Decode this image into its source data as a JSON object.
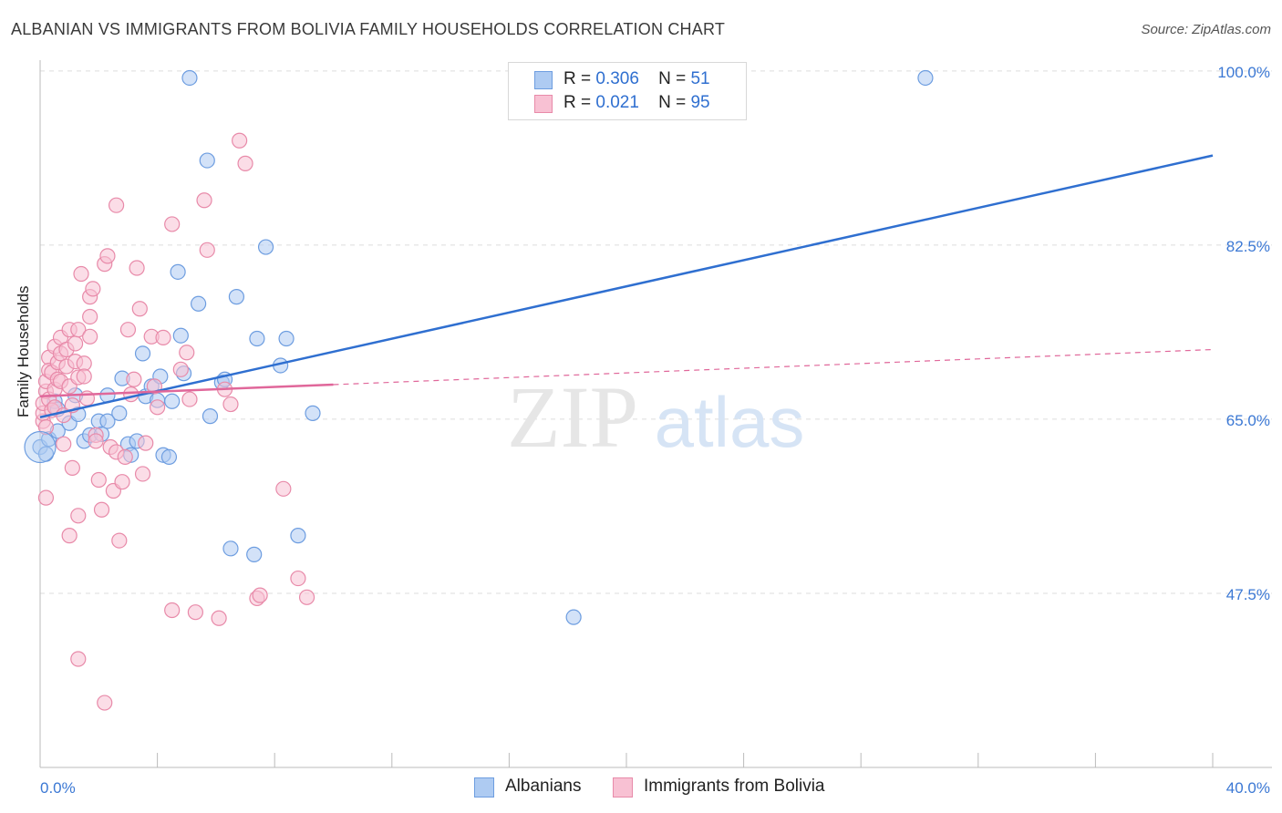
{
  "title": "ALBANIAN VS IMMIGRANTS FROM BOLIVIA FAMILY HOUSEHOLDS CORRELATION CHART",
  "source": "Source: ZipAtlas.com",
  "watermark": {
    "zip": "ZIP",
    "atlas": "atlas"
  },
  "legend_top": {
    "r_label": "R =",
    "n_label": "N =",
    "rows": [
      {
        "r": "0.306",
        "n": "51",
        "fill": "#aecbf2",
        "stroke": "#6d9de0"
      },
      {
        "r": "0.021",
        "n": "95",
        "fill": "#f8c1d3",
        "stroke": "#e88aa9"
      }
    ]
  },
  "chart_data": {
    "type": "scatter",
    "title": "ALBANIAN VS IMMIGRANTS FROM BOLIVIA FAMILY HOUSEHOLDS CORRELATION CHART",
    "xlabel": "",
    "ylabel": "Family Households",
    "xlim": [
      0,
      40
    ],
    "ylim": [
      30,
      102
    ],
    "x_tick_labels": [
      "0.0%",
      "40.0%"
    ],
    "y_ticks": [
      47.5,
      65.0,
      82.5,
      100.0
    ],
    "y_tick_labels": [
      "47.5%",
      "65.0%",
      "82.5%",
      "100.0%"
    ],
    "grid": true,
    "legend_position": "bottom",
    "series": [
      {
        "name": "Albanians",
        "color": "#2f6fd0",
        "fill": "#aecbf2",
        "stroke": "#6d9de0",
        "r": 0.306,
        "n": 51,
        "trend": {
          "x0": 0.0,
          "y0": 65.2,
          "x1": 40.0,
          "y1": 91.5,
          "dashed_from": null
        },
        "points": [
          [
            0.0,
            62.2
          ],
          [
            0.2,
            61.5
          ],
          [
            0.3,
            63.0
          ],
          [
            0.5,
            66.8
          ],
          [
            0.6,
            66.0
          ],
          [
            0.6,
            63.8
          ],
          [
            1.0,
            64.6
          ],
          [
            1.2,
            67.4
          ],
          [
            1.3,
            65.5
          ],
          [
            1.5,
            62.8
          ],
          [
            1.7,
            63.4
          ],
          [
            2.0,
            64.8
          ],
          [
            2.1,
            63.5
          ],
          [
            2.3,
            67.4
          ],
          [
            2.3,
            64.8
          ],
          [
            2.7,
            65.6
          ],
          [
            2.8,
            69.1
          ],
          [
            3.0,
            62.5
          ],
          [
            3.1,
            61.4
          ],
          [
            3.3,
            62.8
          ],
          [
            3.5,
            71.6
          ],
          [
            3.6,
            67.3
          ],
          [
            3.8,
            68.3
          ],
          [
            4.0,
            66.9
          ],
          [
            4.1,
            69.3
          ],
          [
            4.2,
            61.4
          ],
          [
            4.4,
            61.2
          ],
          [
            4.5,
            66.8
          ],
          [
            4.7,
            79.8
          ],
          [
            4.8,
            73.4
          ],
          [
            4.9,
            69.6
          ],
          [
            5.1,
            99.3
          ],
          [
            5.4,
            76.6
          ],
          [
            5.7,
            91.0
          ],
          [
            5.8,
            65.3
          ],
          [
            6.2,
            68.7
          ],
          [
            6.3,
            69.0
          ],
          [
            6.5,
            52.0
          ],
          [
            6.7,
            77.3
          ],
          [
            7.3,
            51.4
          ],
          [
            7.4,
            73.1
          ],
          [
            7.7,
            82.3
          ],
          [
            8.2,
            70.4
          ],
          [
            8.4,
            73.1
          ],
          [
            8.8,
            53.3
          ],
          [
            9.3,
            65.6
          ],
          [
            18.2,
            45.1
          ],
          [
            30.2,
            99.3
          ]
        ]
      },
      {
        "name": "Immigrants from Bolivia",
        "color": "#e0679a",
        "fill": "#f8c1d3",
        "stroke": "#e88aa9",
        "r": 0.021,
        "n": 95,
        "trend": {
          "x0": 0.0,
          "y0": 67.3,
          "x1": 40.0,
          "y1": 72.0,
          "dashed_from": 10.0
        },
        "points": [
          [
            0.1,
            64.8
          ],
          [
            0.1,
            65.6
          ],
          [
            0.1,
            66.6
          ],
          [
            0.2,
            67.8
          ],
          [
            0.2,
            68.8
          ],
          [
            0.2,
            64.2
          ],
          [
            0.3,
            71.2
          ],
          [
            0.3,
            69.9
          ],
          [
            0.3,
            67.0
          ],
          [
            0.4,
            65.9
          ],
          [
            0.4,
            69.7
          ],
          [
            0.5,
            72.3
          ],
          [
            0.5,
            68.0
          ],
          [
            0.5,
            66.2
          ],
          [
            0.6,
            70.7
          ],
          [
            0.6,
            69.0
          ],
          [
            0.7,
            71.6
          ],
          [
            0.7,
            68.8
          ],
          [
            0.7,
            73.2
          ],
          [
            0.8,
            65.4
          ],
          [
            0.8,
            62.5
          ],
          [
            0.9,
            72.0
          ],
          [
            0.9,
            70.3
          ],
          [
            1.0,
            74.0
          ],
          [
            1.0,
            68.3
          ],
          [
            1.0,
            53.3
          ],
          [
            1.1,
            66.4
          ],
          [
            1.1,
            60.1
          ],
          [
            1.2,
            72.6
          ],
          [
            1.2,
            70.8
          ],
          [
            1.3,
            69.2
          ],
          [
            1.3,
            74.0
          ],
          [
            1.4,
            79.6
          ],
          [
            1.5,
            70.6
          ],
          [
            1.5,
            69.3
          ],
          [
            1.6,
            67.1
          ],
          [
            1.7,
            75.3
          ],
          [
            1.7,
            73.3
          ],
          [
            1.7,
            77.3
          ],
          [
            1.8,
            78.1
          ],
          [
            1.9,
            63.4
          ],
          [
            1.9,
            62.8
          ],
          [
            2.0,
            58.9
          ],
          [
            2.1,
            55.9
          ],
          [
            2.2,
            80.6
          ],
          [
            2.3,
            81.4
          ],
          [
            2.4,
            62.2
          ],
          [
            2.5,
            57.8
          ],
          [
            2.6,
            61.7
          ],
          [
            2.6,
            86.5
          ],
          [
            2.7,
            52.8
          ],
          [
            2.8,
            58.7
          ],
          [
            2.9,
            61.2
          ],
          [
            3.0,
            74.0
          ],
          [
            3.1,
            67.5
          ],
          [
            3.2,
            69.0
          ],
          [
            3.3,
            80.2
          ],
          [
            3.4,
            76.1
          ],
          [
            3.5,
            59.5
          ],
          [
            3.6,
            62.6
          ],
          [
            3.8,
            73.3
          ],
          [
            3.9,
            68.3
          ],
          [
            4.0,
            66.2
          ],
          [
            4.2,
            73.2
          ],
          [
            4.5,
            84.6
          ],
          [
            4.5,
            45.8
          ],
          [
            4.8,
            70.0
          ],
          [
            5.0,
            71.7
          ],
          [
            5.1,
            67.0
          ],
          [
            5.3,
            45.6
          ],
          [
            5.6,
            87.0
          ],
          [
            5.7,
            82.0
          ],
          [
            6.1,
            45.0
          ],
          [
            6.3,
            68.0
          ],
          [
            6.5,
            66.5
          ],
          [
            6.8,
            93.0
          ],
          [
            7.0,
            90.7
          ],
          [
            7.4,
            47.0
          ],
          [
            7.5,
            47.3
          ],
          [
            8.3,
            58.0
          ],
          [
            8.8,
            49.0
          ],
          [
            9.1,
            47.1
          ],
          [
            0.2,
            57.1
          ],
          [
            1.3,
            55.3
          ],
          [
            2.2,
            36.5
          ],
          [
            1.3,
            40.9
          ]
        ]
      }
    ]
  }
}
